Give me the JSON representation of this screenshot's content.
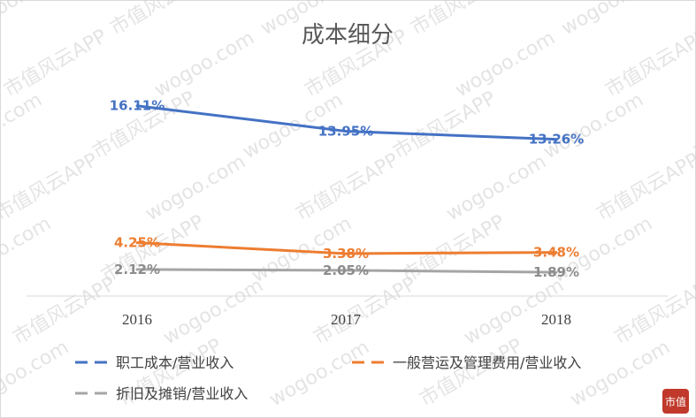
{
  "chart_data": {
    "type": "line",
    "title": "成本细分",
    "categories": [
      "2016",
      "2017",
      "2018"
    ],
    "series": [
      {
        "name": "职工成本/营业收入",
        "values": [
          16.11,
          13.95,
          13.26
        ],
        "labels": [
          "16.11%",
          "13.95%",
          "13.26%"
        ],
        "color": "#4472C4"
      },
      {
        "name": "一般营运及管理费用/营业收入",
        "values": [
          4.25,
          3.38,
          3.48
        ],
        "labels": [
          "4.25%",
          "3.38%",
          "3.48%"
        ],
        "color": "#ED7D31"
      },
      {
        "name": "折旧及摊销/营业收入",
        "values": [
          2.12,
          2.05,
          1.89
        ],
        "labels": [
          "2.12%",
          "2.05%",
          "1.89%"
        ],
        "color": "#A5A5A5"
      }
    ],
    "ylim": [
      0,
      20
    ],
    "grid": false,
    "legend": "bottom"
  },
  "watermark": {
    "text_a": "wogoo.com",
    "text_b": "市值风云APP",
    "seal": "市值"
  }
}
